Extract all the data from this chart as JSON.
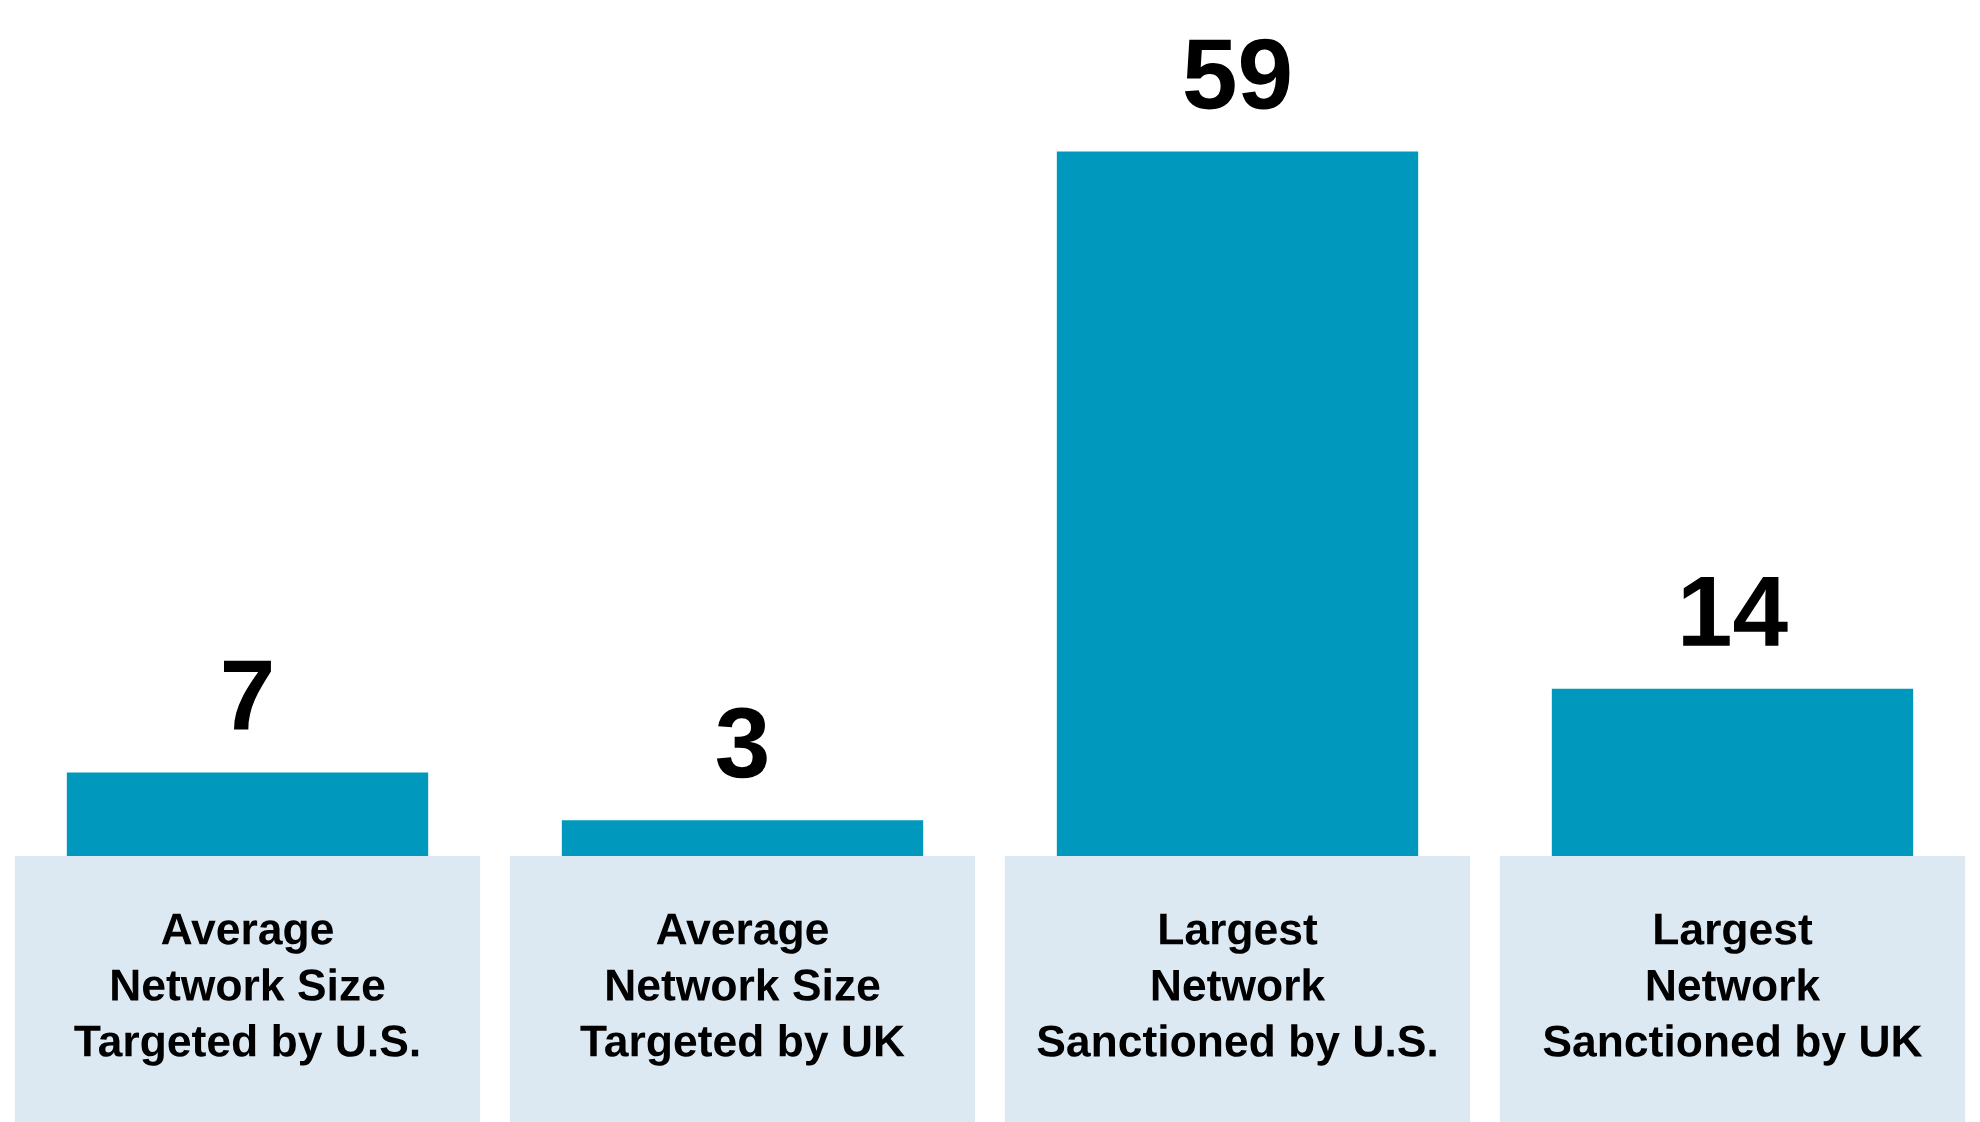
{
  "chart_data": {
    "type": "bar",
    "categories": [
      "Average\nNetwork Size\nTargeted by U.S.",
      "Average\nNetwork Size\nTargeted by UK",
      "Largest\nNetwork\nSanctioned by U.S.",
      "Largest\nNetwork\nSanctioned by UK"
    ],
    "values": [
      7,
      3,
      59,
      14
    ],
    "color": "#0099bd",
    "data_labels": true
  }
}
